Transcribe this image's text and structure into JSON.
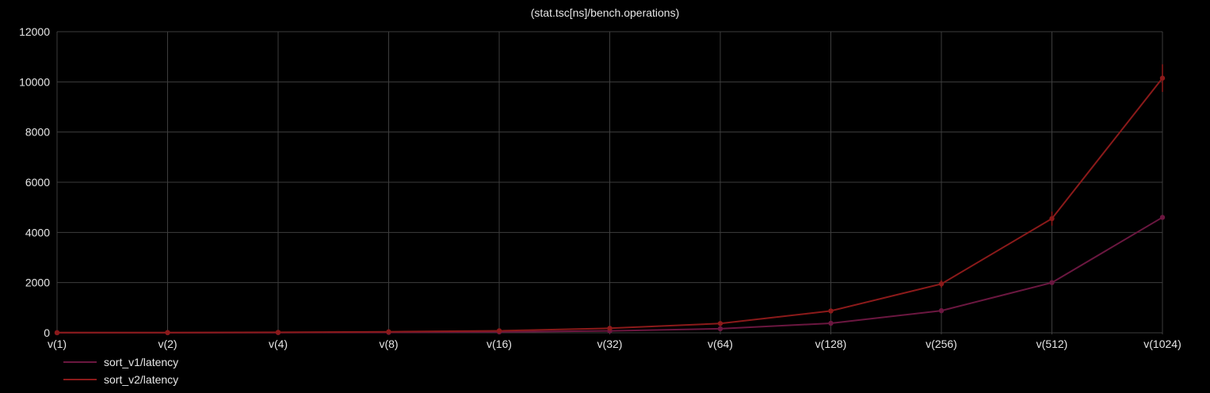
{
  "chart_data": {
    "type": "line",
    "title": "(stat.tsc[ns]/bench.operations)",
    "categories": [
      "v(1)",
      "v(2)",
      "v(4)",
      "v(8)",
      "v(16)",
      "v(32)",
      "v(64)",
      "v(128)",
      "v(256)",
      "v(512)",
      "v(1024)"
    ],
    "yticks": [
      "0",
      "2000",
      "4000",
      "6000",
      "8000",
      "10000",
      "12000"
    ],
    "ylim": [
      0,
      12000
    ],
    "grid": true,
    "legend_position": "bottom-left",
    "series": [
      {
        "name": "sort_v1/latency",
        "color": "#6b1740",
        "values": [
          2,
          4,
          8,
          16,
          35,
          75,
          160,
          380,
          880,
          2000,
          4600
        ]
      },
      {
        "name": "sort_v2/latency",
        "color": "#8b1a1a",
        "values": [
          5,
          10,
          18,
          40,
          80,
          180,
          370,
          870,
          1950,
          4550,
          10150
        ],
        "error": [
          5,
          5,
          5,
          10,
          15,
          20,
          40,
          60,
          150,
          280,
          550
        ]
      }
    ]
  }
}
